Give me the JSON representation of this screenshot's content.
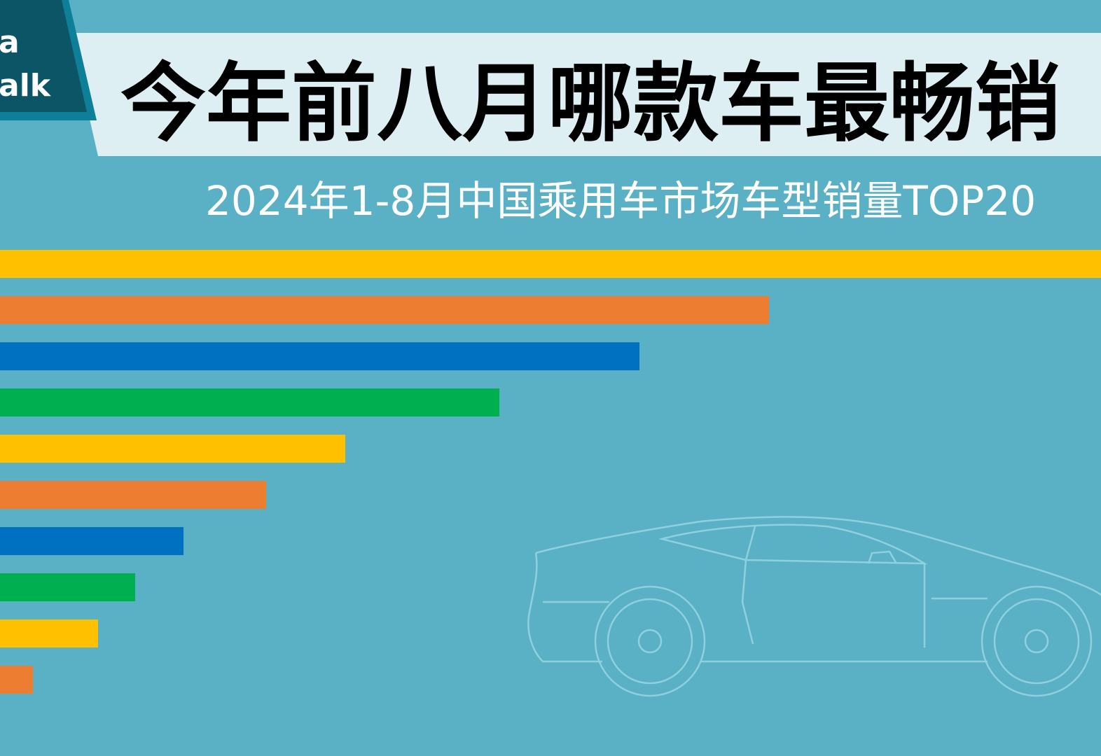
{
  "badge": [
    "a",
    "alk"
  ],
  "chart_data": {
    "type": "bar",
    "orientation": "horizontal",
    "title": "今年前八月哪款车最畅销",
    "subtitle": "2024年1-8月中国乘用车市场车型销量TOP20",
    "categories": [
      null,
      null,
      null,
      null,
      null,
      null,
      null,
      null,
      null,
      null
    ],
    "values": [
      1572,
      1098,
      913,
      713,
      493,
      380,
      262,
      193,
      140,
      47
    ],
    "colors": [
      "#FFC000",
      "#ED7D31",
      "#0070C0",
      "#00B050",
      "#FFC000",
      "#ED7D31",
      "#0070C0",
      "#00B050",
      "#FFC000",
      "#ED7D31"
    ],
    "xlim": [
      0,
      1572
    ]
  }
}
